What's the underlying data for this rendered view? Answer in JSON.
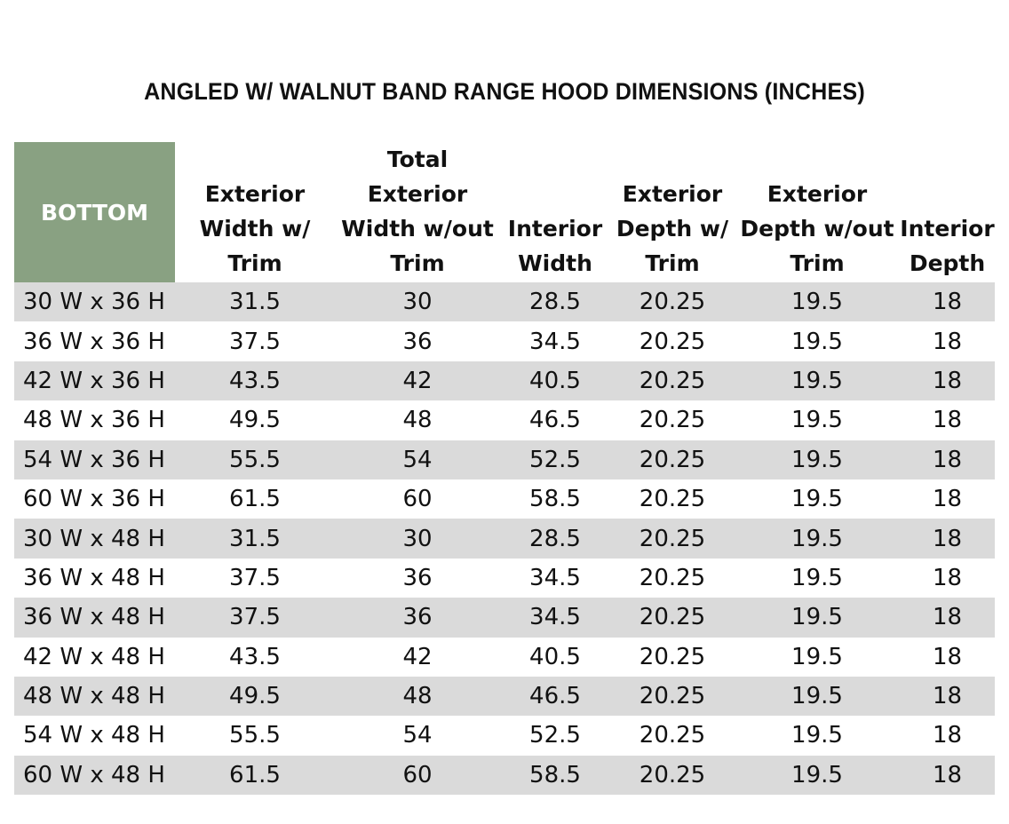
{
  "title": "ANGLED W/ WALNUT BAND RANGE HOOD DIMENSIONS (INCHES)",
  "colors": {
    "header_corner_bg": "#89a182",
    "stripe_bg": "#dadada"
  },
  "table": {
    "corner_label": "BOTTOM",
    "columns": [
      "Exterior\nWidth w/\nTrim",
      "Total Exterior\nWidth w/out\nTrim",
      "Interior\nWidth",
      "Exterior\nDepth w/\nTrim",
      "Exterior\nDepth w/out\nTrim",
      "Interior\nDepth"
    ],
    "rows": [
      {
        "label": "30 W x 36 H",
        "values": [
          "31.5",
          "30",
          "28.5",
          "20.25",
          "19.5",
          "18"
        ]
      },
      {
        "label": "36 W x 36 H",
        "values": [
          "37.5",
          "36",
          "34.5",
          "20.25",
          "19.5",
          "18"
        ]
      },
      {
        "label": "42 W x 36 H",
        "values": [
          "43.5",
          "42",
          "40.5",
          "20.25",
          "19.5",
          "18"
        ]
      },
      {
        "label": "48 W x 36 H",
        "values": [
          "49.5",
          "48",
          "46.5",
          "20.25",
          "19.5",
          "18"
        ]
      },
      {
        "label": "54 W x 36 H",
        "values": [
          "55.5",
          "54",
          "52.5",
          "20.25",
          "19.5",
          "18"
        ]
      },
      {
        "label": "60 W x 36 H",
        "values": [
          "61.5",
          "60",
          "58.5",
          "20.25",
          "19.5",
          "18"
        ]
      },
      {
        "label": "30 W x 48 H",
        "values": [
          "31.5",
          "30",
          "28.5",
          "20.25",
          "19.5",
          "18"
        ]
      },
      {
        "label": "36 W x 48 H",
        "values": [
          "37.5",
          "36",
          "34.5",
          "20.25",
          "19.5",
          "18"
        ]
      },
      {
        "label": "36 W x 48 H",
        "values": [
          "37.5",
          "36",
          "34.5",
          "20.25",
          "19.5",
          "18"
        ]
      },
      {
        "label": "42 W x 48 H",
        "values": [
          "43.5",
          "42",
          "40.5",
          "20.25",
          "19.5",
          "18"
        ]
      },
      {
        "label": "48 W x 48 H",
        "values": [
          "49.5",
          "48",
          "46.5",
          "20.25",
          "19.5",
          "18"
        ]
      },
      {
        "label": "54 W x 48 H",
        "values": [
          "55.5",
          "54",
          "52.5",
          "20.25",
          "19.5",
          "18"
        ]
      },
      {
        "label": "60 W x 48 H",
        "values": [
          "61.5",
          "60",
          "58.5",
          "20.25",
          "19.5",
          "18"
        ]
      }
    ]
  }
}
